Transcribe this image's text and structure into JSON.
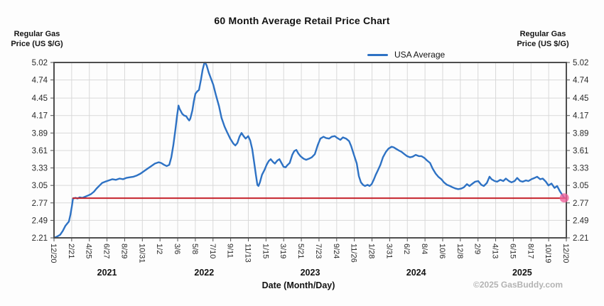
{
  "title": "60 Month Average Retail Price Chart",
  "legend": {
    "label": "USA Average"
  },
  "axis_left_header": "Regular Gas\nPrice (US $/G)",
  "axis_right_header": "Regular Gas\nPrice (US $/G)",
  "x_axis_title": "Date (Month/Day)",
  "copyright": "©2025 GasBuddy.com",
  "colors": {
    "series": "#2e72c4",
    "reference_line": "#c5232b",
    "marker": "#ef639b",
    "grid": "#d9d9d9",
    "border": "#4e4e4e",
    "tick_text": "#2a2a2a"
  },
  "chart_data": {
    "type": "line",
    "title": "60 Month Average Retail Price Chart",
    "series_name": "USA Average",
    "xlabel": "Date (Month/Day)",
    "ylabel": "Regular Gas Price (US $/G)",
    "ylim": [
      2.21,
      5.02
    ],
    "grid": true,
    "legend_position": "top-right",
    "y_ticks": [
      2.21,
      2.49,
      2.77,
      3.05,
      3.33,
      3.61,
      3.89,
      4.17,
      4.45,
      4.74,
      5.02
    ],
    "x_ticks": [
      "12/20",
      "2/21",
      "4/25",
      "6/27",
      "8/29",
      "10/31",
      "1/2",
      "3/6",
      "5/8",
      "7/10",
      "9/11",
      "11/13",
      "1/15",
      "3/19",
      "5/21",
      "7/23",
      "9/24",
      "11/26",
      "1/28",
      "3/31",
      "6/2",
      "8/4",
      "10/6",
      "12/8",
      "2/9",
      "4/13",
      "6/15",
      "8/17",
      "10/19",
      "12/20"
    ],
    "year_labels": [
      {
        "label": "2021",
        "tick_center": 3
      },
      {
        "label": "2022",
        "tick_center": 8.5
      },
      {
        "label": "2023",
        "tick_center": 14.5
      },
      {
        "label": "2024",
        "tick_center": 20.5
      },
      {
        "label": "2025",
        "tick_center": 26.5
      }
    ],
    "reference_line": {
      "value": 2.845,
      "start_frac": 0.036,
      "end_frac": 1.0
    },
    "end_marker": {
      "frac": 0.996,
      "value": 2.85
    },
    "points": [
      [
        0.0,
        2.21
      ],
      [
        0.006,
        2.23
      ],
      [
        0.012,
        2.26
      ],
      [
        0.017,
        2.32
      ],
      [
        0.022,
        2.4
      ],
      [
        0.026,
        2.44
      ],
      [
        0.029,
        2.47
      ],
      [
        0.032,
        2.58
      ],
      [
        0.035,
        2.72
      ],
      [
        0.037,
        2.84
      ],
      [
        0.042,
        2.85
      ],
      [
        0.046,
        2.84
      ],
      [
        0.05,
        2.86
      ],
      [
        0.055,
        2.85
      ],
      [
        0.061,
        2.87
      ],
      [
        0.067,
        2.89
      ],
      [
        0.072,
        2.91
      ],
      [
        0.078,
        2.95
      ],
      [
        0.083,
        3.0
      ],
      [
        0.089,
        3.05
      ],
      [
        0.094,
        3.09
      ],
      [
        0.1,
        3.11
      ],
      [
        0.107,
        3.13
      ],
      [
        0.114,
        3.15
      ],
      [
        0.121,
        3.14
      ],
      [
        0.128,
        3.16
      ],
      [
        0.135,
        3.15
      ],
      [
        0.141,
        3.17
      ],
      [
        0.148,
        3.18
      ],
      [
        0.155,
        3.19
      ],
      [
        0.162,
        3.21
      ],
      [
        0.169,
        3.24
      ],
      [
        0.176,
        3.28
      ],
      [
        0.183,
        3.32
      ],
      [
        0.19,
        3.36
      ],
      [
        0.197,
        3.4
      ],
      [
        0.204,
        3.42
      ],
      [
        0.209,
        3.41
      ],
      [
        0.215,
        3.38
      ],
      [
        0.22,
        3.36
      ],
      [
        0.225,
        3.38
      ],
      [
        0.229,
        3.5
      ],
      [
        0.233,
        3.7
      ],
      [
        0.237,
        3.95
      ],
      [
        0.24,
        4.15
      ],
      [
        0.243,
        4.33
      ],
      [
        0.245,
        4.28
      ],
      [
        0.25,
        4.2
      ],
      [
        0.254,
        4.17
      ],
      [
        0.258,
        4.16
      ],
      [
        0.261,
        4.12
      ],
      [
        0.264,
        4.09
      ],
      [
        0.266,
        4.12
      ],
      [
        0.27,
        4.25
      ],
      [
        0.273,
        4.4
      ],
      [
        0.276,
        4.52
      ],
      [
        0.28,
        4.56
      ],
      [
        0.283,
        4.58
      ],
      [
        0.287,
        4.75
      ],
      [
        0.29,
        4.9
      ],
      [
        0.293,
        5.0
      ],
      [
        0.295,
        5.02
      ],
      [
        0.298,
        4.97
      ],
      [
        0.302,
        4.86
      ],
      [
        0.307,
        4.75
      ],
      [
        0.311,
        4.66
      ],
      [
        0.316,
        4.5
      ],
      [
        0.322,
        4.32
      ],
      [
        0.327,
        4.13
      ],
      [
        0.333,
        3.99
      ],
      [
        0.338,
        3.9
      ],
      [
        0.344,
        3.8
      ],
      [
        0.35,
        3.72
      ],
      [
        0.354,
        3.69
      ],
      [
        0.358,
        3.73
      ],
      [
        0.362,
        3.83
      ],
      [
        0.366,
        3.89
      ],
      [
        0.37,
        3.84
      ],
      [
        0.374,
        3.8
      ],
      [
        0.379,
        3.84
      ],
      [
        0.383,
        3.77
      ],
      [
        0.387,
        3.63
      ],
      [
        0.391,
        3.4
      ],
      [
        0.394,
        3.22
      ],
      [
        0.397,
        3.06
      ],
      [
        0.399,
        3.04
      ],
      [
        0.402,
        3.1
      ],
      [
        0.406,
        3.22
      ],
      [
        0.411,
        3.3
      ],
      [
        0.415,
        3.38
      ],
      [
        0.419,
        3.44
      ],
      [
        0.423,
        3.47
      ],
      [
        0.427,
        3.43
      ],
      [
        0.431,
        3.4
      ],
      [
        0.436,
        3.45
      ],
      [
        0.44,
        3.47
      ],
      [
        0.444,
        3.41
      ],
      [
        0.448,
        3.35
      ],
      [
        0.452,
        3.34
      ],
      [
        0.456,
        3.38
      ],
      [
        0.46,
        3.41
      ],
      [
        0.465,
        3.54
      ],
      [
        0.469,
        3.6
      ],
      [
        0.473,
        3.62
      ],
      [
        0.477,
        3.56
      ],
      [
        0.481,
        3.52
      ],
      [
        0.487,
        3.48
      ],
      [
        0.492,
        3.46
      ],
      [
        0.498,
        3.48
      ],
      [
        0.503,
        3.5
      ],
      [
        0.509,
        3.55
      ],
      [
        0.515,
        3.7
      ],
      [
        0.52,
        3.8
      ],
      [
        0.526,
        3.83
      ],
      [
        0.531,
        3.81
      ],
      [
        0.537,
        3.8
      ],
      [
        0.542,
        3.83
      ],
      [
        0.548,
        3.84
      ],
      [
        0.553,
        3.81
      ],
      [
        0.559,
        3.78
      ],
      [
        0.564,
        3.82
      ],
      [
        0.57,
        3.8
      ],
      [
        0.576,
        3.76
      ],
      [
        0.58,
        3.68
      ],
      [
        0.585,
        3.55
      ],
      [
        0.591,
        3.4
      ],
      [
        0.595,
        3.2
      ],
      [
        0.599,
        3.1
      ],
      [
        0.603,
        3.06
      ],
      [
        0.607,
        3.04
      ],
      [
        0.612,
        3.06
      ],
      [
        0.616,
        3.04
      ],
      [
        0.62,
        3.07
      ],
      [
        0.624,
        3.14
      ],
      [
        0.628,
        3.22
      ],
      [
        0.632,
        3.29
      ],
      [
        0.637,
        3.38
      ],
      [
        0.642,
        3.5
      ],
      [
        0.648,
        3.59
      ],
      [
        0.653,
        3.64
      ],
      [
        0.659,
        3.67
      ],
      [
        0.663,
        3.66
      ],
      [
        0.667,
        3.64
      ],
      [
        0.673,
        3.61
      ],
      [
        0.678,
        3.59
      ],
      [
        0.684,
        3.55
      ],
      [
        0.689,
        3.52
      ],
      [
        0.695,
        3.5
      ],
      [
        0.7,
        3.51
      ],
      [
        0.706,
        3.54
      ],
      [
        0.712,
        3.52
      ],
      [
        0.717,
        3.52
      ],
      [
        0.723,
        3.49
      ],
      [
        0.728,
        3.45
      ],
      [
        0.734,
        3.41
      ],
      [
        0.739,
        3.32
      ],
      [
        0.745,
        3.24
      ],
      [
        0.75,
        3.19
      ],
      [
        0.756,
        3.15
      ],
      [
        0.761,
        3.1
      ],
      [
        0.767,
        3.06
      ],
      [
        0.773,
        3.04
      ],
      [
        0.778,
        3.02
      ],
      [
        0.784,
        3.0
      ],
      [
        0.789,
        2.99
      ],
      [
        0.795,
        3.0
      ],
      [
        0.8,
        3.02
      ],
      [
        0.806,
        3.07
      ],
      [
        0.811,
        3.04
      ],
      [
        0.817,
        3.08
      ],
      [
        0.822,
        3.11
      ],
      [
        0.828,
        3.12
      ],
      [
        0.834,
        3.06
      ],
      [
        0.839,
        3.04
      ],
      [
        0.845,
        3.09
      ],
      [
        0.85,
        3.19
      ],
      [
        0.854,
        3.15
      ],
      [
        0.86,
        3.12
      ],
      [
        0.865,
        3.11
      ],
      [
        0.871,
        3.14
      ],
      [
        0.877,
        3.12
      ],
      [
        0.882,
        3.16
      ],
      [
        0.888,
        3.12
      ],
      [
        0.893,
        3.1
      ],
      [
        0.899,
        3.12
      ],
      [
        0.904,
        3.17
      ],
      [
        0.91,
        3.12
      ],
      [
        0.915,
        3.11
      ],
      [
        0.921,
        3.13
      ],
      [
        0.926,
        3.12
      ],
      [
        0.932,
        3.15
      ],
      [
        0.938,
        3.17
      ],
      [
        0.943,
        3.19
      ],
      [
        0.949,
        3.15
      ],
      [
        0.954,
        3.16
      ],
      [
        0.96,
        3.11
      ],
      [
        0.965,
        3.05
      ],
      [
        0.971,
        3.08
      ],
      [
        0.977,
        3.01
      ],
      [
        0.982,
        3.04
      ],
      [
        0.988,
        2.95
      ],
      [
        0.992,
        2.9
      ],
      [
        0.996,
        2.85
      ]
    ]
  }
}
